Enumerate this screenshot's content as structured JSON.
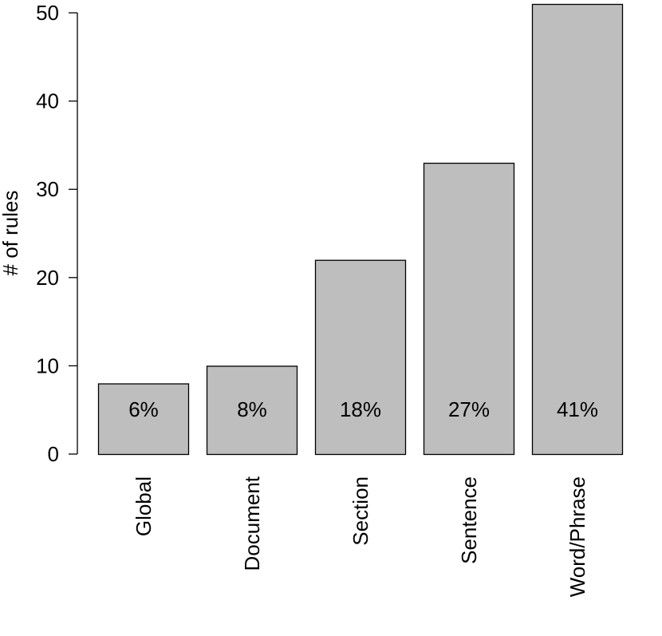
{
  "chart_data": {
    "type": "bar",
    "title": "",
    "xlabel": "",
    "ylabel": "# of rules",
    "categories": [
      "Global",
      "Document",
      "Section",
      "Sentence",
      "Word/Phrase"
    ],
    "values": [
      8,
      10,
      22,
      33,
      51
    ],
    "data_labels": [
      "6%",
      "8%",
      "18%",
      "27%",
      "41%"
    ],
    "ylim": [
      0,
      51
    ],
    "yticks": [
      0,
      10,
      20,
      30,
      40,
      50
    ],
    "grid": false,
    "legend": "none",
    "bar_color": "#bebebe",
    "bar_edge_color": "#000000"
  }
}
